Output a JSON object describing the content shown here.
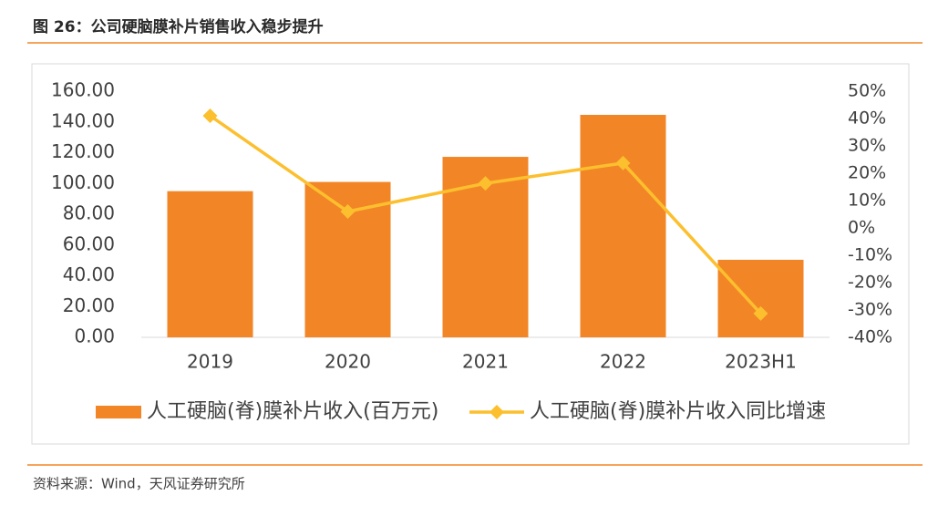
{
  "header": {
    "title": "图 26：公司硬脑膜补片销售收入稳步提升"
  },
  "chart_data": {
    "type": "bar",
    "categories": [
      "2019",
      "2020",
      "2021",
      "2022",
      "2023H1"
    ],
    "series": [
      {
        "name": "人工硬脑(脊)膜补片收入(百万元)",
        "type": "bar",
        "color": "#f28526",
        "values": [
          95,
          101,
          117.3,
          144.6,
          50.4
        ]
      },
      {
        "name": "人工硬脑(脊)膜补片收入同比增速",
        "type": "line",
        "axis": "y2",
        "color": "#fcbf2e",
        "values": [
          41,
          6,
          16.3,
          23.7,
          -31.3
        ]
      }
    ],
    "ylim": [
      0,
      160
    ],
    "yticks": [
      {
        "value": 0,
        "label": "0.00"
      },
      {
        "value": 20,
        "label": "20.00"
      },
      {
        "value": 40,
        "label": "40.00"
      },
      {
        "value": 60,
        "label": "60.00"
      },
      {
        "value": 80,
        "label": "80.00"
      },
      {
        "value": 100,
        "label": "100.00"
      },
      {
        "value": 120,
        "label": "120.00"
      },
      {
        "value": 140,
        "label": "140.00"
      },
      {
        "value": 160,
        "label": "160.00"
      }
    ],
    "y2lim": [
      -40,
      50
    ],
    "y2ticks": [
      {
        "value": -40,
        "label": "-40%"
      },
      {
        "value": -30,
        "label": "-30%"
      },
      {
        "value": -20,
        "label": "-20%"
      },
      {
        "value": -10,
        "label": "-10%"
      },
      {
        "value": 0,
        "label": "0%"
      },
      {
        "value": 10,
        "label": "10%"
      },
      {
        "value": 20,
        "label": "20%"
      },
      {
        "value": 30,
        "label": "30%"
      },
      {
        "value": 40,
        "label": "40%"
      },
      {
        "value": 50,
        "label": "50%"
      }
    ],
    "legend": "bottom",
    "grid": false
  },
  "footer": {
    "source": "资料来源：Wind，天风证券研究所"
  }
}
